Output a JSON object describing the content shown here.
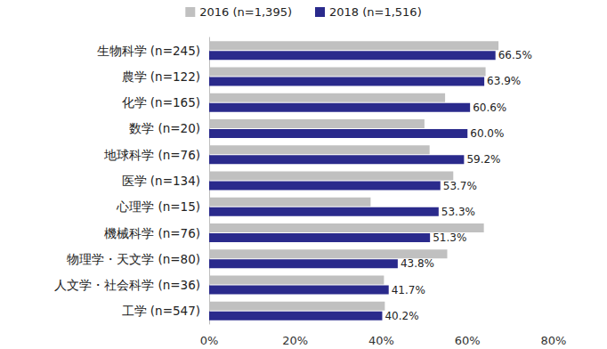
{
  "chart_data": {
    "type": "bar",
    "orientation": "horizontal",
    "categories": [
      "生物科学 (n=245)",
      "農学 (n=122)",
      "化学 (n=165)",
      "数学 (n=20)",
      "地球科学 (n=76)",
      "医学 (n=134)",
      "心理学 (n=15)",
      "機械科学 (n=76)",
      "物理学・天文学 (n=80)",
      "人文学・社会科学 (n=36)",
      "工学 (n=547)"
    ],
    "series": [
      {
        "name": "2016 (n=1,395)",
        "color": "#c0c0c0",
        "values": [
          67.2,
          64.2,
          54.8,
          50.0,
          51.2,
          56.7,
          37.5,
          63.8,
          55.3,
          40.6,
          40.8
        ]
      },
      {
        "name": "2018 (n=1,516)",
        "color": "#2a2a8c",
        "data_labels": true,
        "values": [
          66.5,
          63.9,
          60.6,
          60.0,
          59.2,
          53.7,
          53.3,
          51.3,
          43.8,
          41.7,
          40.2
        ],
        "value_labels": [
          "66.5%",
          "63.9%",
          "60.6%",
          "60.0%",
          "59.2%",
          "53.7%",
          "53.3%",
          "51.3%",
          "43.8%",
          "41.7%",
          "40.2%"
        ]
      }
    ],
    "xlim": [
      0,
      80
    ],
    "xticks": [
      {
        "value": 0,
        "label": "0%"
      },
      {
        "value": 20,
        "label": "20%"
      },
      {
        "value": 40,
        "label": "40%"
      },
      {
        "value": 60,
        "label": "60%"
      },
      {
        "value": 80,
        "label": "80%"
      }
    ],
    "grid": false,
    "legend": "top"
  }
}
